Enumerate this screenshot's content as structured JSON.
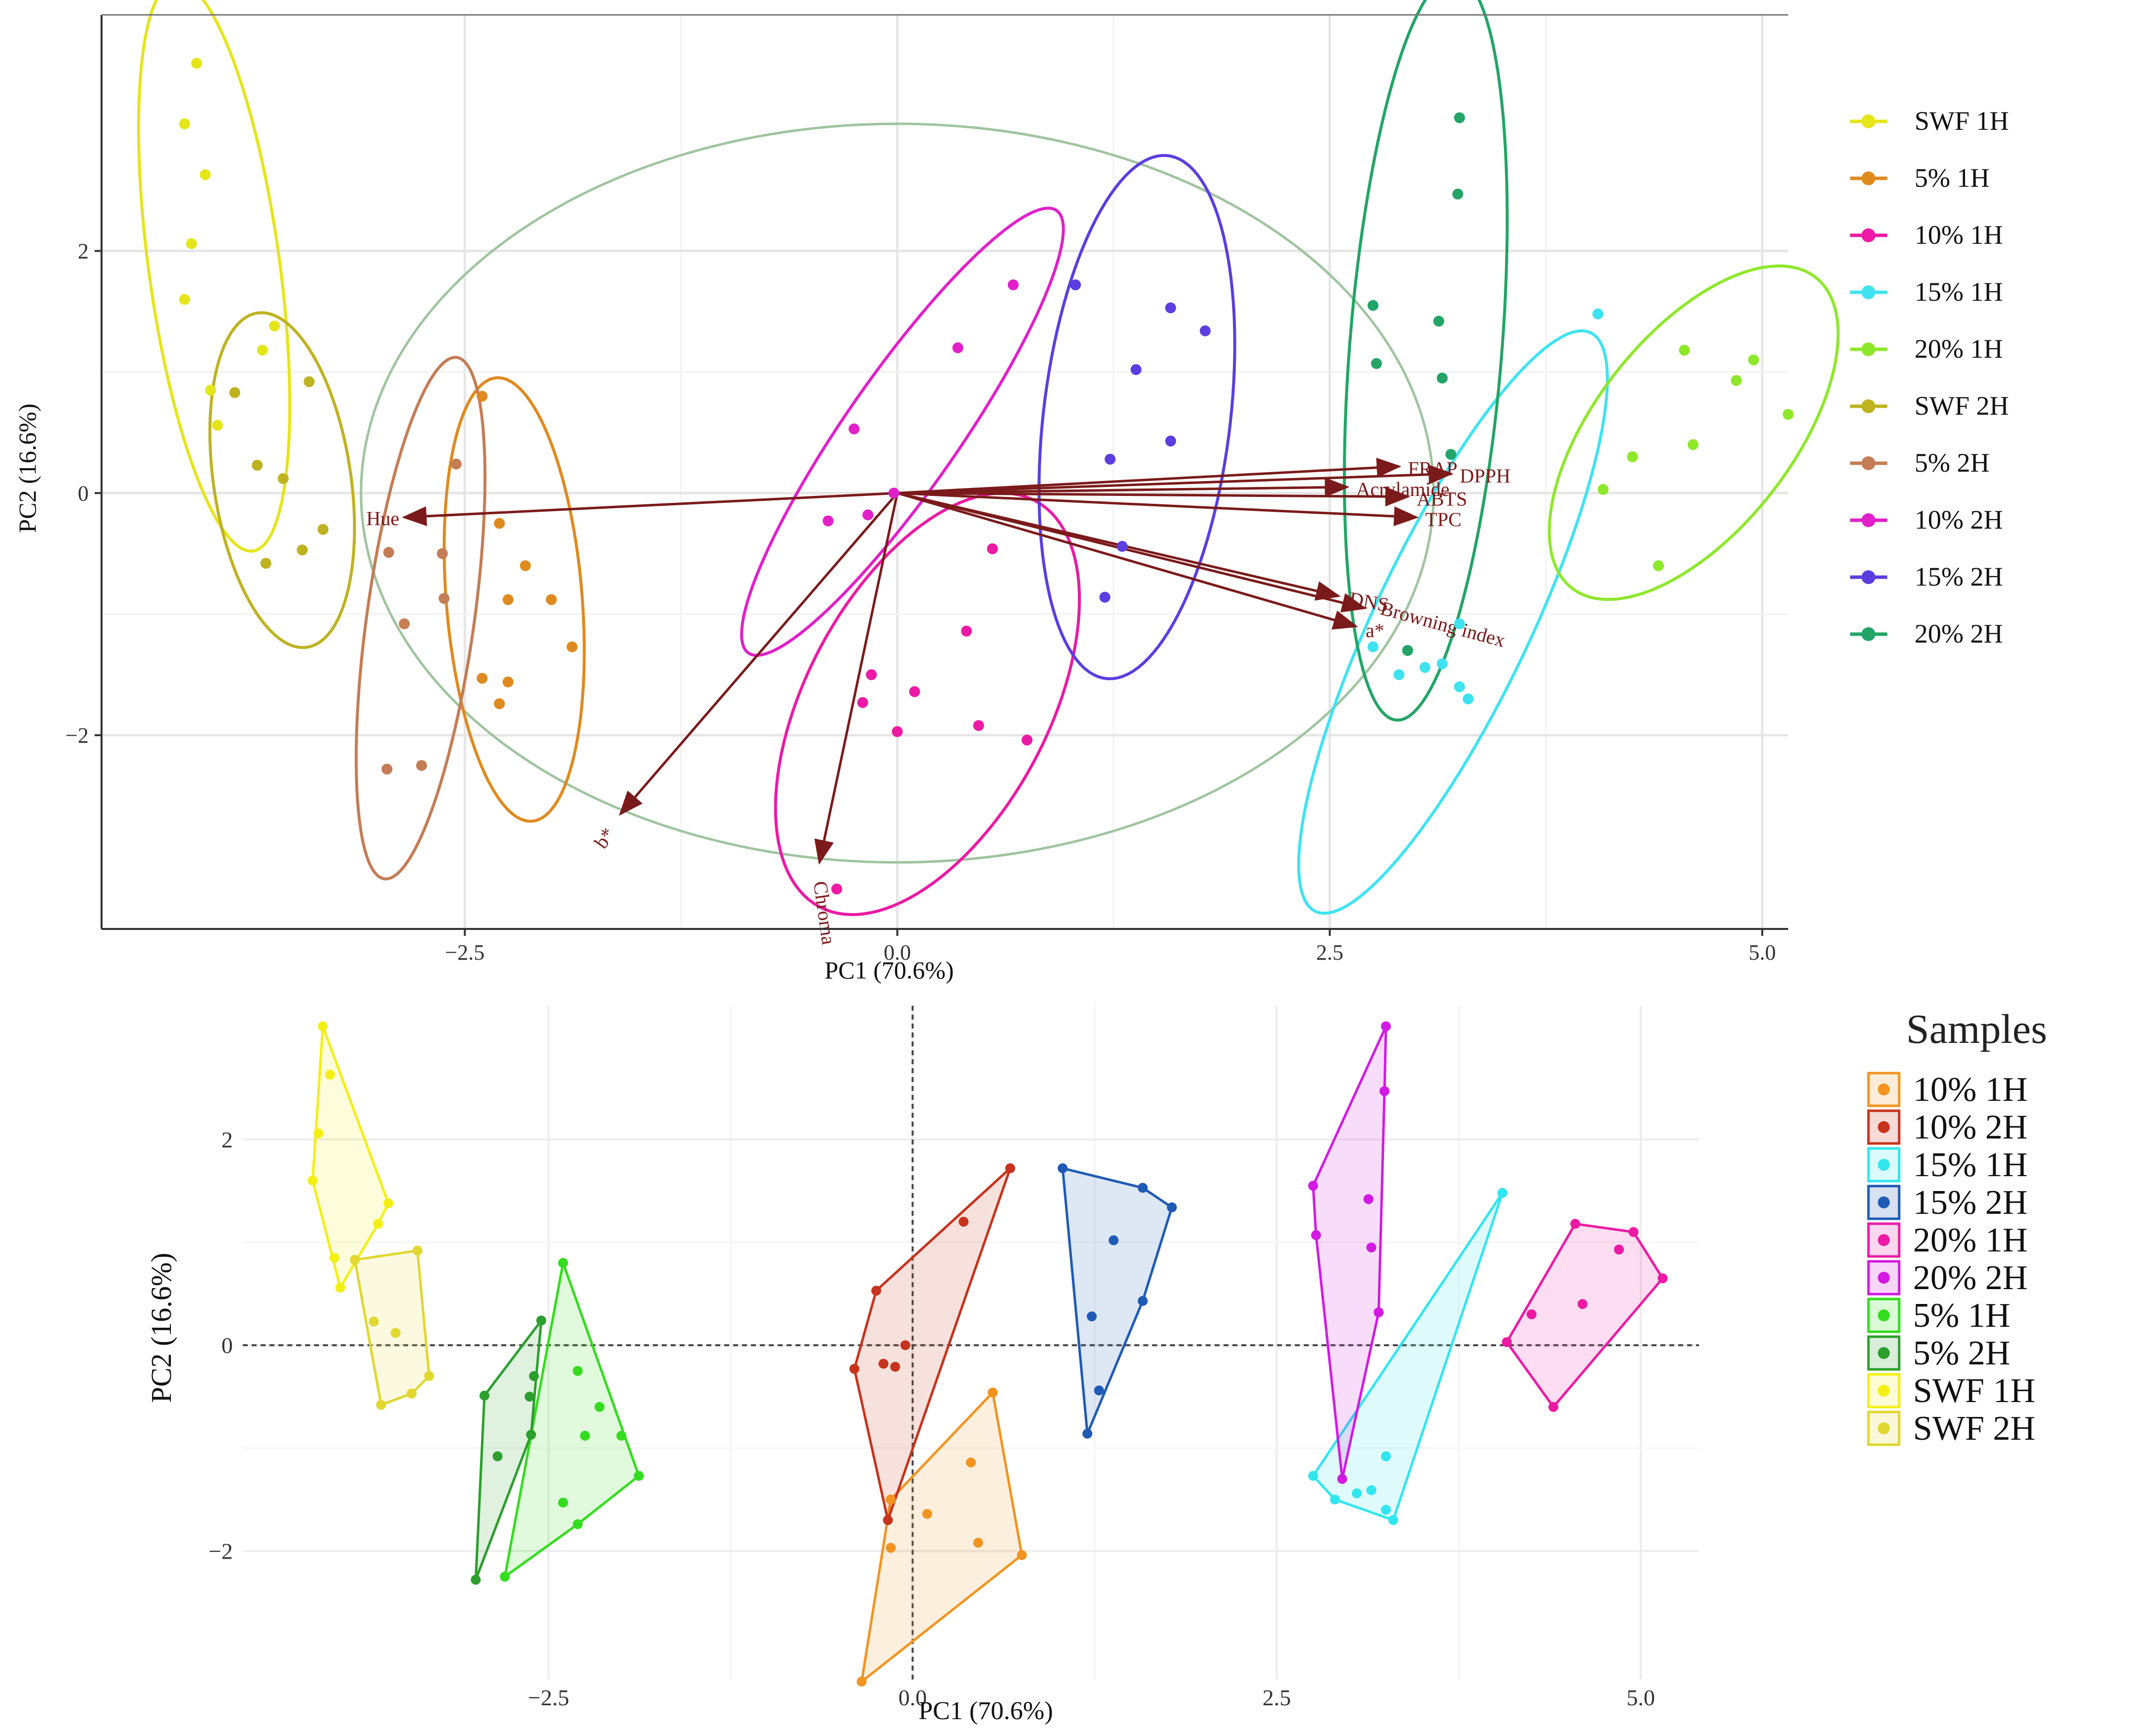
{
  "chart_data": [
    {
      "type": "scatter",
      "subtype": "pca-biplot",
      "title": "",
      "xlabel": "PC1 (70.6%)",
      "ylabel": "PC2 (16.6%)",
      "xlim": [
        -4.6,
        5.15
      ],
      "ylim": [
        -3.6,
        3.95
      ],
      "x_ticks": [
        -2.5,
        0.0,
        2.5,
        5.0
      ],
      "x_tick_labels": [
        "−2.5",
        "0.0",
        "2.5",
        "5.0"
      ],
      "y_ticks": [
        -2,
        0,
        2
      ],
      "y_tick_labels": [
        "−2",
        "0",
        "2"
      ],
      "grid": true,
      "legend_position": "right",
      "series": [
        {
          "name": "SWF 1H",
          "color": "#e5e51a",
          "points": [
            [
              -4.05,
              3.55
            ],
            [
              -4.12,
              3.05
            ],
            [
              -4.0,
              2.63
            ],
            [
              -4.08,
              2.06
            ],
            [
              -4.12,
              1.6
            ],
            [
              -3.6,
              1.38
            ],
            [
              -3.67,
              1.18
            ],
            [
              -3.97,
              0.85
            ],
            [
              -3.93,
              0.56
            ]
          ]
        },
        {
          "name": "5% 1H",
          "color": "#df8a1f",
          "points": [
            [
              -2.4,
              0.8
            ],
            [
              -2.3,
              -0.25
            ],
            [
              -2.15,
              -0.6
            ],
            [
              -2.25,
              -0.88
            ],
            [
              -2.0,
              -0.88
            ],
            [
              -1.88,
              -1.27
            ],
            [
              -2.4,
              -1.53
            ],
            [
              -2.3,
              -1.74
            ],
            [
              -2.25,
              -1.56
            ]
          ]
        },
        {
          "name": "10% 1H",
          "color": "#ec1aa4",
          "points": [
            [
              0.55,
              -0.46
            ],
            [
              0.4,
              -1.14
            ],
            [
              -0.15,
              -1.5
            ],
            [
              0.1,
              -1.64
            ],
            [
              -0.2,
              -1.73
            ],
            [
              0.0,
              -1.97
            ],
            [
              0.47,
              -1.92
            ],
            [
              0.75,
              -2.04
            ],
            [
              -0.35,
              -3.27
            ]
          ]
        },
        {
          "name": "15% 1H",
          "color": "#3fe3f0",
          "points": [
            [
              4.05,
              1.48
            ],
            [
              3.25,
              -1.08
            ],
            [
              2.75,
              -1.27
            ],
            [
              3.15,
              -1.41
            ],
            [
              3.05,
              -1.44
            ],
            [
              2.9,
              -1.5
            ],
            [
              3.25,
              -1.6
            ],
            [
              3.3,
              -1.7
            ]
          ]
        },
        {
          "name": "20% 1H",
          "color": "#8ee82a",
          "points": [
            [
              4.55,
              1.18
            ],
            [
              4.95,
              1.1
            ],
            [
              4.85,
              0.93
            ],
            [
              5.15,
              0.65
            ],
            [
              4.6,
              0.4
            ],
            [
              4.25,
              0.3
            ],
            [
              4.08,
              0.03
            ],
            [
              4.4,
              -0.6
            ]
          ]
        },
        {
          "name": "SWF 2H",
          "color": "#bfb21f",
          "points": [
            [
              -3.4,
              0.92
            ],
            [
              -3.83,
              0.83
            ],
            [
              -3.7,
              0.23
            ],
            [
              -3.55,
              0.12
            ],
            [
              -3.32,
              -0.3
            ],
            [
              -3.44,
              -0.47
            ],
            [
              -3.65,
              -0.58
            ]
          ]
        },
        {
          "name": "5% 2H",
          "color": "#c47d55",
          "points": [
            [
              -2.55,
              0.24
            ],
            [
              -2.94,
              -0.49
            ],
            [
              -2.63,
              -0.5
            ],
            [
              -2.62,
              -0.87
            ],
            [
              -2.85,
              -1.08
            ],
            [
              -2.95,
              -2.28
            ],
            [
              -2.75,
              -2.25
            ]
          ]
        },
        {
          "name": "10% 2H",
          "color": "#e120c9",
          "points": [
            [
              0.67,
              1.72
            ],
            [
              0.35,
              1.2
            ],
            [
              -0.25,
              0.53
            ],
            [
              -0.17,
              -0.18
            ],
            [
              -0.4,
              -0.23
            ],
            [
              -0.02,
              0.0
            ]
          ]
        },
        {
          "name": "15% 2H",
          "color": "#5b3ee0",
          "points": [
            [
              1.03,
              1.72
            ],
            [
              1.58,
              1.53
            ],
            [
              1.78,
              1.34
            ],
            [
              1.38,
              1.02
            ],
            [
              1.23,
              0.28
            ],
            [
              1.58,
              0.43
            ],
            [
              1.3,
              -0.44
            ],
            [
              1.2,
              -0.86
            ]
          ]
        },
        {
          "name": "20% 2H",
          "color": "#22a566",
          "points": [
            [
              3.25,
              3.1
            ],
            [
              3.24,
              2.47
            ],
            [
              2.75,
              1.55
            ],
            [
              3.13,
              1.42
            ],
            [
              2.77,
              1.07
            ],
            [
              3.15,
              0.95
            ],
            [
              3.2,
              0.32
            ],
            [
              2.95,
              -1.3
            ]
          ]
        }
      ],
      "loadings": [
        {
          "label": "FRAP",
          "x": 2.9,
          "y": 0.22
        },
        {
          "label": "DPPH",
          "x": 3.2,
          "y": 0.16
        },
        {
          "label": "Acrylamide",
          "x": 2.6,
          "y": 0.05
        },
        {
          "label": "ABTS",
          "x": 2.95,
          "y": -0.03
        },
        {
          "label": "TPC",
          "x": 3.0,
          "y": -0.2
        },
        {
          "label": "DNS",
          "x": 2.55,
          "y": -0.85
        },
        {
          "label": "Browning index",
          "x": 2.7,
          "y": -0.95
        },
        {
          "label": "a*",
          "x": 2.65,
          "y": -1.1
        },
        {
          "label": "b*",
          "x": -1.6,
          "y": -2.65
        },
        {
          "label": "Chroma",
          "x": -0.45,
          "y": -3.05
        },
        {
          "label": "Hue",
          "x": -2.85,
          "y": -0.2
        }
      ]
    },
    {
      "type": "scatter",
      "subtype": "pca-convex-hull",
      "title": "",
      "xlabel": "PC1 (70.6%)",
      "ylabel": "PC2 (16.6%)",
      "xlim": [
        -4.6,
        5.4
      ],
      "ylim": [
        -3.25,
        3.3
      ],
      "x_ticks": [
        -2.5,
        0.0,
        2.5,
        5.0
      ],
      "x_tick_labels": [
        "−2.5",
        "0.0",
        "2.5",
        "5.0"
      ],
      "y_ticks": [
        -2,
        0,
        2
      ],
      "y_tick_labels": [
        "−2",
        "0",
        "2"
      ],
      "grid": true,
      "legend_position": "right",
      "legend_title": "Samples",
      "series": [
        {
          "name": "10% 1H",
          "color": "#f2941f",
          "points": [
            [
              0.55,
              -0.46
            ],
            [
              0.4,
              -1.14
            ],
            [
              -0.15,
              -1.5
            ],
            [
              0.1,
              -1.64
            ],
            [
              -0.15,
              -1.97
            ],
            [
              0.45,
              -1.92
            ],
            [
              0.75,
              -2.04
            ],
            [
              -0.35,
              -3.27
            ]
          ]
        },
        {
          "name": "10% 2H",
          "color": "#c7331c",
          "points": [
            [
              0.67,
              1.72
            ],
            [
              0.35,
              1.2
            ],
            [
              -0.25,
              0.53
            ],
            [
              -0.05,
              0.0
            ],
            [
              -0.4,
              -0.23
            ],
            [
              -0.2,
              -0.18
            ],
            [
              -0.12,
              -0.21
            ],
            [
              -0.17,
              -1.7
            ]
          ]
        },
        {
          "name": "15% 1H",
          "color": "#31e6ee",
          "points": [
            [
              4.05,
              1.48
            ],
            [
              3.25,
              -1.08
            ],
            [
              2.75,
              -1.27
            ],
            [
              3.15,
              -1.41
            ],
            [
              3.05,
              -1.44
            ],
            [
              2.9,
              -1.5
            ],
            [
              3.25,
              -1.6
            ],
            [
              3.3,
              -1.7
            ]
          ]
        },
        {
          "name": "15% 2H",
          "color": "#1f5bb5",
          "points": [
            [
              1.03,
              1.72
            ],
            [
              1.58,
              1.53
            ],
            [
              1.78,
              1.34
            ],
            [
              1.38,
              1.02
            ],
            [
              1.23,
              0.28
            ],
            [
              1.58,
              0.43
            ],
            [
              1.28,
              -0.44
            ],
            [
              1.2,
              -0.86
            ]
          ]
        },
        {
          "name": "20% 1H",
          "color": "#ec1aa4",
          "points": [
            [
              4.55,
              1.18
            ],
            [
              4.95,
              1.1
            ],
            [
              4.85,
              0.93
            ],
            [
              5.15,
              0.65
            ],
            [
              4.6,
              0.4
            ],
            [
              4.25,
              0.3
            ],
            [
              4.08,
              0.03
            ],
            [
              4.4,
              -0.6
            ]
          ]
        },
        {
          "name": "20% 2H",
          "color": "#d21ae3",
          "points": [
            [
              3.25,
              3.1
            ],
            [
              3.24,
              2.47
            ],
            [
              2.75,
              1.55
            ],
            [
              3.13,
              1.42
            ],
            [
              2.77,
              1.07
            ],
            [
              3.15,
              0.95
            ],
            [
              3.2,
              0.32
            ],
            [
              2.95,
              -1.3
            ]
          ]
        },
        {
          "name": "5% 1H",
          "color": "#33dd1e",
          "points": [
            [
              -2.4,
              0.8
            ],
            [
              -2.3,
              -0.25
            ],
            [
              -2.15,
              -0.6
            ],
            [
              -2.25,
              -0.88
            ],
            [
              -2.0,
              -0.88
            ],
            [
              -1.88,
              -1.27
            ],
            [
              -2.4,
              -1.53
            ],
            [
              -2.3,
              -1.74
            ],
            [
              -2.8,
              -2.25
            ]
          ]
        },
        {
          "name": "5% 2H",
          "color": "#2c9f2c",
          "points": [
            [
              -2.55,
              0.24
            ],
            [
              -2.6,
              -0.3
            ],
            [
              -2.94,
              -0.49
            ],
            [
              -2.63,
              -0.5
            ],
            [
              -2.62,
              -0.87
            ],
            [
              -2.85,
              -1.08
            ],
            [
              -3.0,
              -2.28
            ]
          ]
        },
        {
          "name": "SWF 1H",
          "color": "#f3ef14",
          "points": [
            [
              -4.05,
              3.1
            ],
            [
              -4.0,
              2.63
            ],
            [
              -4.08,
              2.06
            ],
            [
              -4.12,
              1.6
            ],
            [
              -3.6,
              1.38
            ],
            [
              -3.67,
              1.18
            ],
            [
              -3.97,
              0.85
            ],
            [
              -3.93,
              0.56
            ]
          ]
        },
        {
          "name": "SWF 2H",
          "color": "#e1d72e",
          "points": [
            [
              -3.4,
              0.92
            ],
            [
              -3.83,
              0.83
            ],
            [
              -3.7,
              0.23
            ],
            [
              -3.55,
              0.12
            ],
            [
              -3.32,
              -0.3
            ],
            [
              -3.44,
              -0.47
            ],
            [
              -3.65,
              -0.58
            ]
          ]
        }
      ]
    }
  ]
}
